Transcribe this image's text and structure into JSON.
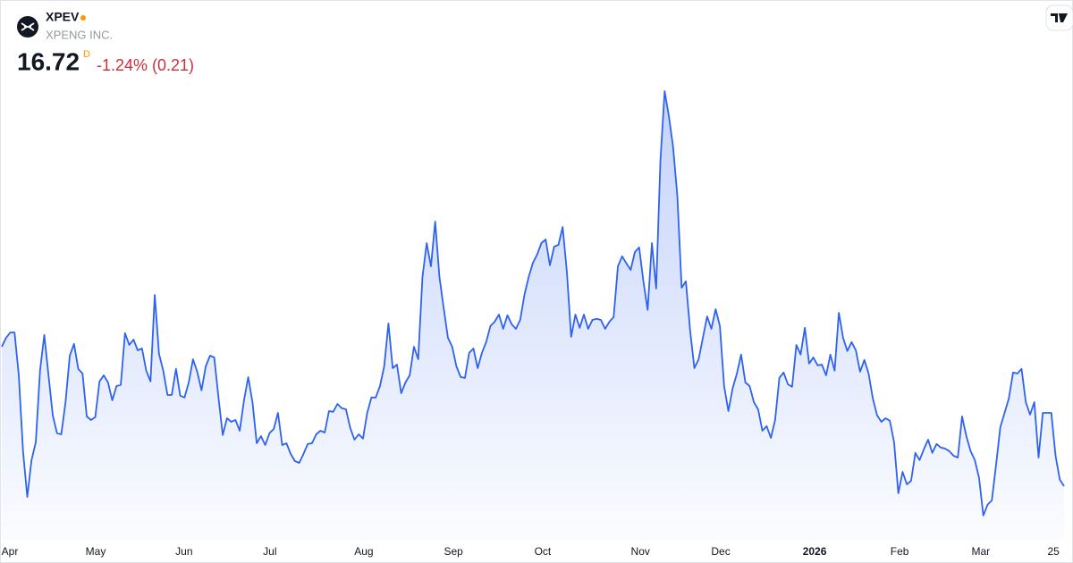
{
  "header": {
    "symbol": "XPEV",
    "name": "XPENG INC.",
    "price": 16.72,
    "interval": "D",
    "change": "-1.24% (0.21)"
  },
  "chart_data": {
    "type": "area",
    "series": [
      {
        "color": "#2e62f0",
        "values": [
          20.62,
          20.87,
          21.02,
          21.02,
          19.82,
          17.7,
          16.42,
          17.45,
          17.95,
          19.95,
          20.95,
          19.82,
          18.7,
          18.2,
          18.17,
          19.07,
          20.37,
          20.7,
          20.0,
          19.87,
          18.67,
          18.57,
          18.65,
          19.65,
          19.82,
          19.62,
          19.12,
          19.52,
          19.55,
          21.0,
          20.67,
          20.82,
          20.52,
          20.57,
          19.95,
          19.65,
          22.07,
          20.42,
          19.95,
          19.27,
          19.27,
          20.0,
          19.25,
          19.2,
          19.62,
          20.27,
          19.92,
          19.4,
          20.07,
          20.37,
          20.32,
          19.2,
          18.15,
          18.62,
          18.52,
          18.57,
          18.27,
          19.12,
          19.77,
          19.07,
          17.92,
          18.12,
          17.87,
          18.2,
          18.32,
          18.77,
          17.87,
          17.92,
          17.62,
          17.42,
          17.37,
          17.62,
          17.9,
          17.92,
          18.17,
          18.27,
          18.22,
          18.82,
          18.8,
          19.02,
          18.9,
          18.87,
          18.35,
          18.02,
          18.17,
          18.05,
          18.77,
          19.2,
          19.2,
          19.52,
          20.07,
          21.27,
          20.02,
          20.12,
          19.32,
          19.62,
          19.82,
          20.62,
          20.27,
          22.57,
          23.52,
          22.87,
          24.12,
          22.57,
          21.7,
          20.87,
          20.62,
          20.07,
          19.77,
          19.75,
          20.45,
          20.57,
          20.02,
          20.45,
          20.75,
          21.2,
          21.32,
          21.52,
          21.12,
          21.5,
          21.25,
          21.12,
          21.37,
          22.07,
          22.57,
          22.97,
          23.2,
          23.52,
          23.62,
          22.9,
          23.42,
          23.47,
          23.97,
          22.7,
          20.9,
          21.52,
          21.15,
          21.52,
          21.12,
          21.37,
          21.4,
          21.37,
          21.12,
          21.32,
          21.45,
          22.87,
          23.15,
          22.95,
          22.77,
          23.27,
          23.4,
          22.45,
          21.65,
          23.52,
          22.25,
          25.82,
          27.77,
          27.07,
          26.2,
          24.82,
          22.27,
          22.45,
          21.07,
          20.02,
          20.27,
          20.87,
          21.47,
          21.12,
          21.67,
          21.2,
          19.52,
          18.82,
          19.45,
          19.87,
          20.4,
          19.62,
          19.52,
          19.07,
          18.87,
          18.27,
          18.4,
          18.07,
          18.57,
          19.75,
          19.9,
          19.57,
          19.5,
          20.67,
          20.4,
          21.15,
          20.15,
          20.32,
          20.1,
          20.12,
          19.82,
          20.4,
          19.95,
          21.57,
          20.87,
          20.5,
          20.75,
          20.52,
          19.92,
          20.25,
          19.87,
          19.17,
          18.7,
          18.52,
          18.62,
          18.55,
          17.95,
          16.52,
          17.12,
          16.77,
          16.87,
          17.65,
          17.45,
          17.75,
          18.02,
          17.65,
          17.9,
          17.8,
          17.77,
          17.7,
          17.57,
          17.52,
          18.67,
          18.12,
          17.7,
          17.45,
          16.95,
          15.9,
          16.2,
          16.32,
          17.32,
          18.37,
          18.77,
          19.17,
          19.9,
          19.87,
          20.0,
          19.07,
          18.72,
          19.07,
          17.52,
          18.77,
          18.77,
          18.77,
          17.57,
          16.9,
          16.72
        ]
      }
    ],
    "xlim": [
      0,
      250
    ],
    "ylim": [
      15,
      29
    ],
    "xticks": [
      {
        "value": 1.9,
        "label": "Apr"
      },
      {
        "value": 22.1,
        "label": "May"
      },
      {
        "value": 42.9,
        "label": "Jun"
      },
      {
        "value": 63.1,
        "label": "Jul"
      },
      {
        "value": 85.2,
        "label": "Aug"
      },
      {
        "value": 106.3,
        "label": "Sep"
      },
      {
        "value": 127.3,
        "label": "Oct"
      },
      {
        "value": 150.3,
        "label": "Nov"
      },
      {
        "value": 169.2,
        "label": "Dec"
      },
      {
        "value": 191.3,
        "label": "2026",
        "bold": true
      },
      {
        "value": 211.3,
        "label": "Feb"
      },
      {
        "value": 230.4,
        "label": "Mar"
      },
      {
        "value": 247.5,
        "label": "25"
      }
    ]
  }
}
